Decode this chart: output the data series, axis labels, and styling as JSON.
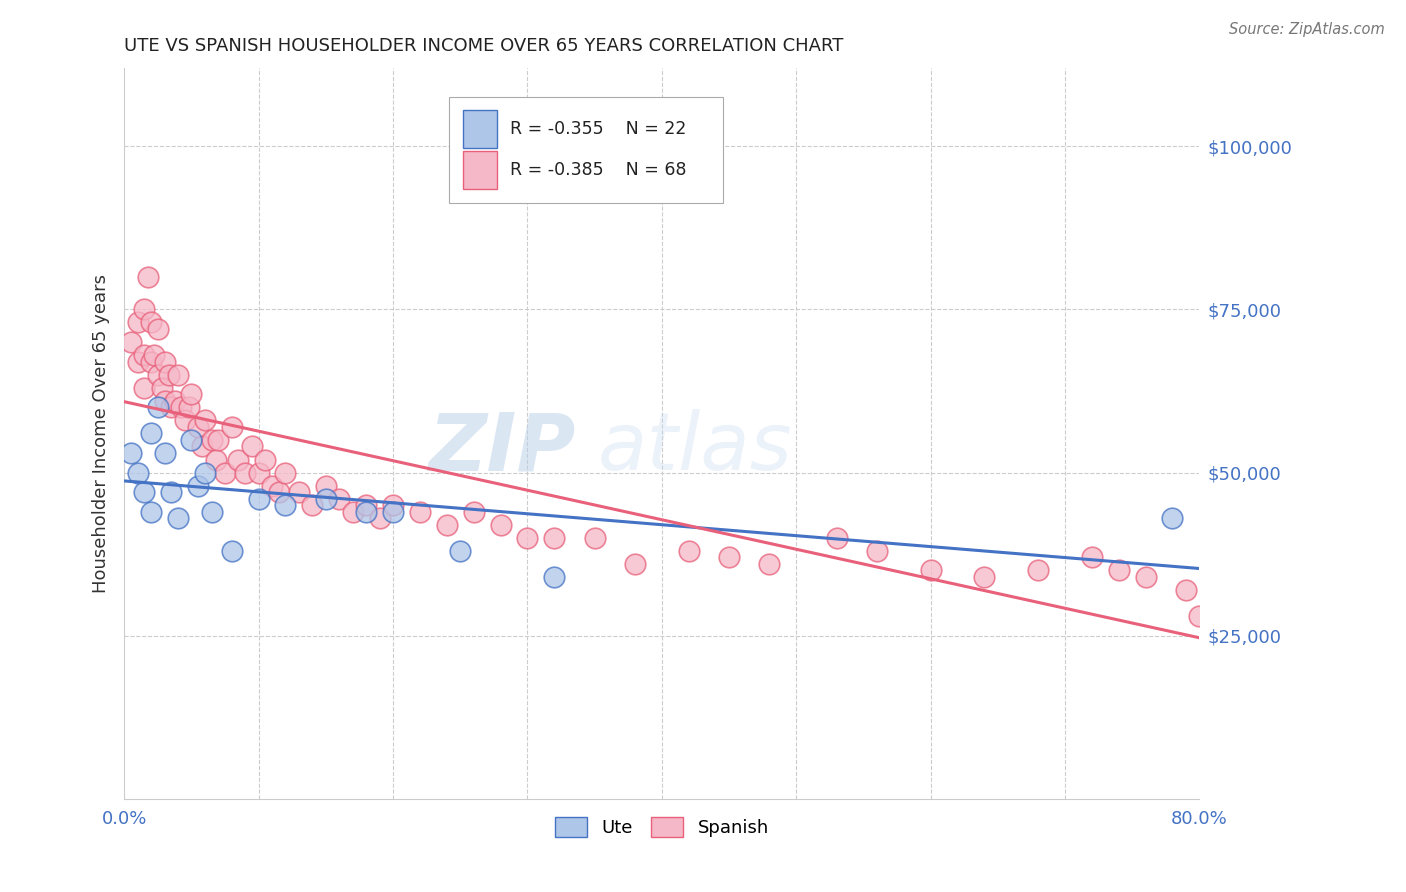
{
  "title": "UTE VS SPANISH HOUSEHOLDER INCOME OVER 65 YEARS CORRELATION CHART",
  "source": "Source: ZipAtlas.com",
  "ylabel": "Householder Income Over 65 years",
  "legend_label_ute": "Ute",
  "legend_label_spanish": "Spanish",
  "legend_r_ute": "R = -0.355",
  "legend_n_ute": "N = 22",
  "legend_r_spanish": "R = -0.385",
  "legend_n_spanish": "N = 68",
  "watermark_zip": "ZIP",
  "watermark_atlas": "atlas",
  "ytick_labels": [
    "$25,000",
    "$50,000",
    "$75,000",
    "$100,000"
  ],
  "ytick_values": [
    25000,
    50000,
    75000,
    100000
  ],
  "ymin": 0,
  "ymax": 112000,
  "xmin": 0.0,
  "xmax": 0.8,
  "color_ute": "#aec6e8",
  "color_spanish": "#f5b8c8",
  "color_ute_line": "#4472c4",
  "color_spanish_line": "#e8607a",
  "color_axis_labels": "#4472c4",
  "color_title": "#222222",
  "ute_x": [
    0.005,
    0.01,
    0.015,
    0.02,
    0.02,
    0.025,
    0.03,
    0.035,
    0.04,
    0.05,
    0.055,
    0.06,
    0.065,
    0.08,
    0.1,
    0.12,
    0.15,
    0.18,
    0.2,
    0.25,
    0.32,
    0.78
  ],
  "ute_y": [
    53000,
    50000,
    47000,
    56000,
    44000,
    60000,
    53000,
    47000,
    43000,
    55000,
    48000,
    50000,
    44000,
    38000,
    46000,
    45000,
    46000,
    44000,
    44000,
    38000,
    34000,
    43000
  ],
  "spanish_x": [
    0.005,
    0.01,
    0.01,
    0.015,
    0.015,
    0.015,
    0.018,
    0.02,
    0.02,
    0.022,
    0.025,
    0.025,
    0.028,
    0.03,
    0.03,
    0.033,
    0.035,
    0.038,
    0.04,
    0.042,
    0.045,
    0.048,
    0.05,
    0.055,
    0.058,
    0.06,
    0.065,
    0.068,
    0.07,
    0.075,
    0.08,
    0.085,
    0.09,
    0.095,
    0.1,
    0.105,
    0.11,
    0.115,
    0.12,
    0.13,
    0.14,
    0.15,
    0.16,
    0.17,
    0.18,
    0.19,
    0.2,
    0.22,
    0.24,
    0.26,
    0.28,
    0.3,
    0.32,
    0.35,
    0.38,
    0.42,
    0.45,
    0.48,
    0.53,
    0.56,
    0.6,
    0.64,
    0.68,
    0.72,
    0.74,
    0.76,
    0.79,
    0.8
  ],
  "spanish_y": [
    70000,
    73000,
    67000,
    75000,
    68000,
    63000,
    80000,
    73000,
    67000,
    68000,
    72000,
    65000,
    63000,
    67000,
    61000,
    65000,
    60000,
    61000,
    65000,
    60000,
    58000,
    60000,
    62000,
    57000,
    54000,
    58000,
    55000,
    52000,
    55000,
    50000,
    57000,
    52000,
    50000,
    54000,
    50000,
    52000,
    48000,
    47000,
    50000,
    47000,
    45000,
    48000,
    46000,
    44000,
    45000,
    43000,
    45000,
    44000,
    42000,
    44000,
    42000,
    40000,
    40000,
    40000,
    36000,
    38000,
    37000,
    36000,
    40000,
    38000,
    35000,
    34000,
    35000,
    37000,
    35000,
    34000,
    32000,
    28000
  ]
}
